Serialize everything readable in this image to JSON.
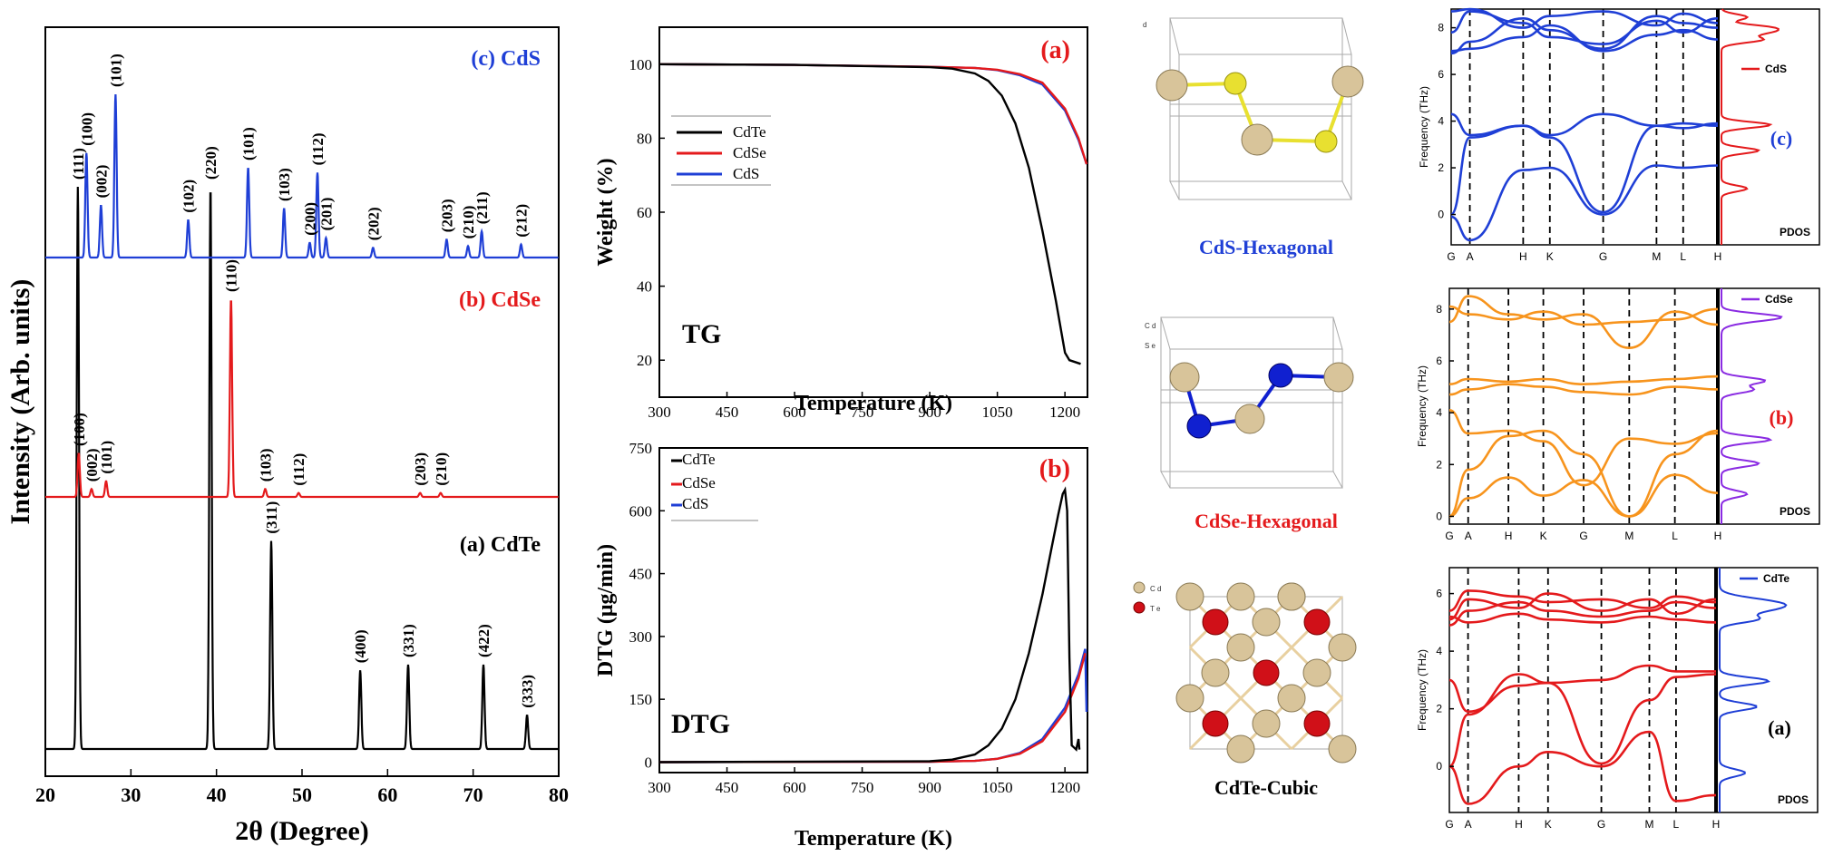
{
  "colors": {
    "black": "#000000",
    "red": "#e41a1c",
    "blue": "#1f3fd6",
    "orange": "#f7941d",
    "purple": "#8a2be2",
    "cd_atom": "#d8c49a",
    "s_atom": "#e8e030",
    "se_atom": "#1020d0",
    "te_atom": "#d01018"
  },
  "chart_data": [
    {
      "type": "line",
      "name_key": "xrd",
      "xlabel": "2θ (Degree)",
      "ylabel": "Intensity (Arb. units)",
      "xlim": [
        20,
        80
      ],
      "xticks": [
        "20",
        "30",
        "40",
        "50",
        "60",
        "70",
        "80"
      ],
      "series": [
        {
          "name": "(a) CdTe",
          "color": "#000000",
          "peaks": [
            {
              "x": 23.8,
              "h": 1.0,
              "label": "(111)"
            },
            {
              "x": 39.3,
              "h": 1.0,
              "label": "(220)"
            },
            {
              "x": 46.4,
              "h": 0.37,
              "label": "(311)"
            },
            {
              "x": 56.8,
              "h": 0.14,
              "label": "(400)"
            },
            {
              "x": 62.4,
              "h": 0.15,
              "label": "(331)"
            },
            {
              "x": 71.2,
              "h": 0.15,
              "label": "(422)"
            },
            {
              "x": 76.3,
              "h": 0.06,
              "label": "(333)"
            }
          ]
        },
        {
          "name": "(b) CdSe",
          "color": "#e41a1c",
          "peaks": [
            {
              "x": 23.9,
              "h": 0.22,
              "label": "(100)"
            },
            {
              "x": 25.4,
              "h": 0.04,
              "label": "(002)"
            },
            {
              "x": 27.1,
              "h": 0.08,
              "label": "(101)"
            },
            {
              "x": 41.7,
              "h": 1.0,
              "label": "(110)"
            },
            {
              "x": 45.7,
              "h": 0.04,
              "label": "(103)"
            },
            {
              "x": 49.6,
              "h": 0.02,
              "label": "(112)"
            },
            {
              "x": 63.8,
              "h": 0.02,
              "label": "(203)"
            },
            {
              "x": 66.2,
              "h": 0.02,
              "label": "(210)"
            }
          ]
        },
        {
          "name": "(c) CdS",
          "color": "#1f3fd6",
          "peaks": [
            {
              "x": 24.8,
              "h": 0.64,
              "label": "(100)"
            },
            {
              "x": 26.5,
              "h": 0.32,
              "label": "(002)"
            },
            {
              "x": 28.2,
              "h": 1.0,
              "label": "(101)"
            },
            {
              "x": 36.7,
              "h": 0.23,
              "label": "(102)"
            },
            {
              "x": 43.7,
              "h": 0.55,
              "label": "(101)"
            },
            {
              "x": 47.9,
              "h": 0.3,
              "label": "(103)"
            },
            {
              "x": 50.9,
              "h": 0.09,
              "label": "(200)"
            },
            {
              "x": 51.8,
              "h": 0.52,
              "label": "(112)"
            },
            {
              "x": 52.8,
              "h": 0.12,
              "label": "(201)"
            },
            {
              "x": 58.3,
              "h": 0.06,
              "label": "(202)"
            },
            {
              "x": 66.9,
              "h": 0.11,
              "label": "(203)"
            },
            {
              "x": 69.4,
              "h": 0.07,
              "label": "(210)"
            },
            {
              "x": 71.0,
              "h": 0.16,
              "label": "(211)"
            },
            {
              "x": 75.6,
              "h": 0.08,
              "label": "(212)"
            }
          ]
        }
      ]
    },
    {
      "type": "line",
      "name_key": "tg",
      "xlabel": "Temperature (K)",
      "ylabel": "Weight (%)",
      "panel_label": "(a)",
      "corner_text": "TG",
      "xlim": [
        300,
        1250
      ],
      "ylim": [
        10,
        110
      ],
      "xticks": [
        300,
        450,
        600,
        750,
        900,
        1050,
        1200
      ],
      "yticks": [
        20,
        40,
        60,
        80,
        100
      ],
      "legend": [
        "CdTe",
        "CdSe",
        "CdS"
      ],
      "series": [
        {
          "name": "CdTe",
          "color": "#000000",
          "x": [
            300,
            600,
            900,
            950,
            1000,
            1030,
            1060,
            1090,
            1120,
            1150,
            1180,
            1200,
            1210,
            1235
          ],
          "y": [
            100,
            99.8,
            99.2,
            98.8,
            97.5,
            95.5,
            91.5,
            84,
            72,
            55,
            36,
            22,
            20,
            19
          ]
        },
        {
          "name": "CdSe",
          "color": "#e41a1c",
          "x": [
            300,
            600,
            900,
            1000,
            1050,
            1100,
            1150,
            1200,
            1230,
            1248
          ],
          "y": [
            100,
            99.8,
            99.3,
            99,
            98.5,
            97.3,
            95,
            88,
            80,
            73
          ]
        },
        {
          "name": "CdS",
          "color": "#1f3fd6",
          "x": [
            300,
            600,
            900,
            1000,
            1050,
            1100,
            1150,
            1200,
            1230,
            1248
          ],
          "y": [
            100,
            99.8,
            99.3,
            99,
            98.4,
            97,
            94.5,
            87.5,
            79.5,
            73
          ]
        }
      ]
    },
    {
      "type": "line",
      "name_key": "dtg",
      "xlabel": "Temperature (K)",
      "ylabel": "DTG (μg/min)",
      "panel_label": "(b)",
      "corner_text": "DTG",
      "xlim": [
        300,
        1250
      ],
      "ylim": [
        -25,
        750
      ],
      "xticks": [
        300,
        450,
        600,
        750,
        900,
        1050,
        1200
      ],
      "yticks": [
        0,
        150,
        300,
        450,
        600,
        750
      ],
      "legend": [
        "CdTe",
        "CdSe",
        "CdS"
      ],
      "series": [
        {
          "name": "CdTe",
          "color": "#000000",
          "x": [
            300,
            900,
            950,
            1000,
            1030,
            1060,
            1090,
            1120,
            1150,
            1170,
            1185,
            1195,
            1200,
            1205,
            1210,
            1215,
            1225,
            1230,
            1232
          ],
          "y": [
            0,
            2,
            6,
            18,
            40,
            80,
            150,
            260,
            400,
            510,
            590,
            640,
            650,
            600,
            250,
            40,
            30,
            55,
            30
          ]
        },
        {
          "name": "CdSe",
          "color": "#e41a1c",
          "x": [
            300,
            900,
            1000,
            1050,
            1100,
            1150,
            1200,
            1230,
            1245
          ],
          "y": [
            0,
            1,
            3,
            8,
            20,
            50,
            120,
            200,
            260
          ]
        },
        {
          "name": "CdS",
          "color": "#1f3fd6",
          "x": [
            300,
            900,
            1000,
            1050,
            1100,
            1150,
            1200,
            1230,
            1245,
            1248
          ],
          "y": [
            0,
            1,
            3,
            8,
            22,
            55,
            130,
            210,
            270,
            120
          ]
        }
      ]
    },
    {
      "type": "line",
      "name_key": "phonon_cds",
      "ylabel": "Frequency (THz)",
      "panel_label": "(c)",
      "legend": "CdS",
      "pdos_label": "PDOS",
      "band_color": "#1f3fd6",
      "pdos_color": "#e41a1c",
      "ylim": [
        -1.3,
        8.8
      ],
      "yticks": [
        0,
        2,
        4,
        6,
        8
      ],
      "kpoints": [
        "G",
        "A",
        "H",
        "K",
        "G",
        "M",
        "L",
        "H"
      ]
    },
    {
      "type": "line",
      "name_key": "phonon_cdse",
      "ylabel": "Frequency (THz)",
      "panel_label": "(b)",
      "legend": "CdSe",
      "pdos_label": "PDOS",
      "band_color": "#f7941d",
      "pdos_color": "#8a2be2",
      "ylim": [
        -0.3,
        8.8
      ],
      "yticks": [
        0,
        2,
        4,
        6,
        8
      ],
      "kpoints": [
        "G",
        "A",
        "H",
        "K",
        "G",
        "M",
        "L",
        "H"
      ]
    },
    {
      "type": "line",
      "name_key": "phonon_cdte",
      "ylabel": "Frequency (THz)",
      "panel_label": "(a)",
      "legend": "CdTe",
      "pdos_label": "PDOS",
      "band_color": "#e41a1c",
      "pdos_color": "#1f3fd6",
      "ylim": [
        -1.6,
        6.9
      ],
      "yticks": [
        0,
        2,
        4,
        6
      ],
      "kpoints": [
        "G",
        "A",
        "H",
        "K",
        "G",
        "M",
        "L",
        "H"
      ]
    }
  ],
  "structures": {
    "cds": {
      "title": "CdS-Hexagonal",
      "corner": "d"
    },
    "cdse": {
      "title": "CdSe-Hexagonal",
      "legend_cd": "C d",
      "legend_se": "S e"
    },
    "cdte": {
      "title": "CdTe-Cubic",
      "legend_cd": "C d",
      "legend_te": "T e"
    }
  }
}
